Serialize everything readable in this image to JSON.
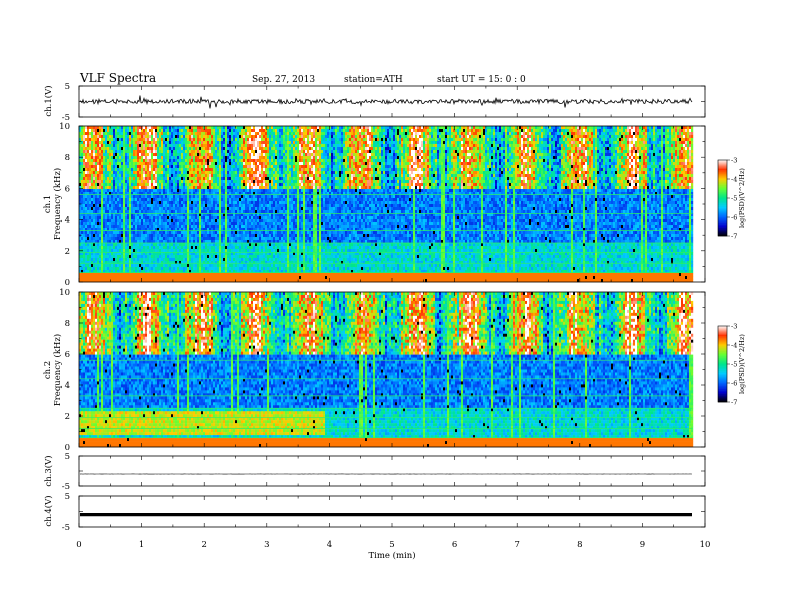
{
  "header": {
    "title": "VLF  Spectra",
    "date": "Sep. 27, 2013",
    "station": "station=ATH",
    "start": "start  UT  =    15: 0   : 0"
  },
  "chart_data": [
    {
      "type": "line",
      "ylabel": "ch.1(V)",
      "ylim": [
        -5,
        5
      ],
      "ytick_labels": [
        "5",
        "-5"
      ],
      "baseline_value": 0,
      "noise_amplitude": 1.2
    },
    {
      "type": "heatmap",
      "ylabel_channel": "ch.1",
      "ylabel": "Frequency  (kHz)",
      "ylim": [
        0,
        10
      ],
      "ytick_labels": [
        "0",
        "2",
        "4",
        "6",
        "8",
        "10"
      ],
      "colorbar": {
        "label": "log(PSD)(V^2/Hz)",
        "range": [
          -7,
          -3
        ],
        "tick_labels": [
          "-3",
          "-4",
          "-5",
          "-6",
          "-7"
        ],
        "colors": [
          "#000000",
          "#0000cc",
          "#0066ff",
          "#00ccff",
          "#00e68a",
          "#66ff33",
          "#ffcc00",
          "#ff3300",
          "#ffffff"
        ]
      }
    },
    {
      "type": "heatmap",
      "ylabel_channel": "ch.2",
      "ylabel": "Frequency  (kHz)",
      "ylim": [
        0,
        10
      ],
      "ytick_labels": [
        "0",
        "2",
        "4",
        "6",
        "8",
        "10"
      ],
      "colorbar": {
        "label": "log(PSD)(V^2/Hz)",
        "range": [
          -7,
          -3
        ],
        "tick_labels": [
          "-3",
          "-4",
          "-5",
          "-6",
          "-7"
        ],
        "colors": [
          "#000000",
          "#0000cc",
          "#0066ff",
          "#00ccff",
          "#00e68a",
          "#66ff33",
          "#ffcc00",
          "#ff3300",
          "#ffffff"
        ]
      }
    },
    {
      "type": "line",
      "ylabel": "ch.3(V)",
      "ylim": [
        -5,
        5
      ],
      "ytick_labels": [
        "5",
        "-5"
      ],
      "baseline_value": -1.0,
      "noise_amplitude": 0.05
    },
    {
      "type": "line",
      "ylabel": "ch.4(V)",
      "ylim": [
        -5,
        5
      ],
      "ytick_labels": [
        "5",
        "-5"
      ],
      "baseline_value": -1.0,
      "noise_amplitude": 0.0
    }
  ],
  "x_axis": {
    "label": "Time  (min)",
    "range": [
      0,
      10
    ],
    "data_end": 9.8,
    "tick_labels": [
      "0",
      "1",
      "2",
      "3",
      "4",
      "5",
      "6",
      "7",
      "8",
      "9",
      "10"
    ]
  }
}
